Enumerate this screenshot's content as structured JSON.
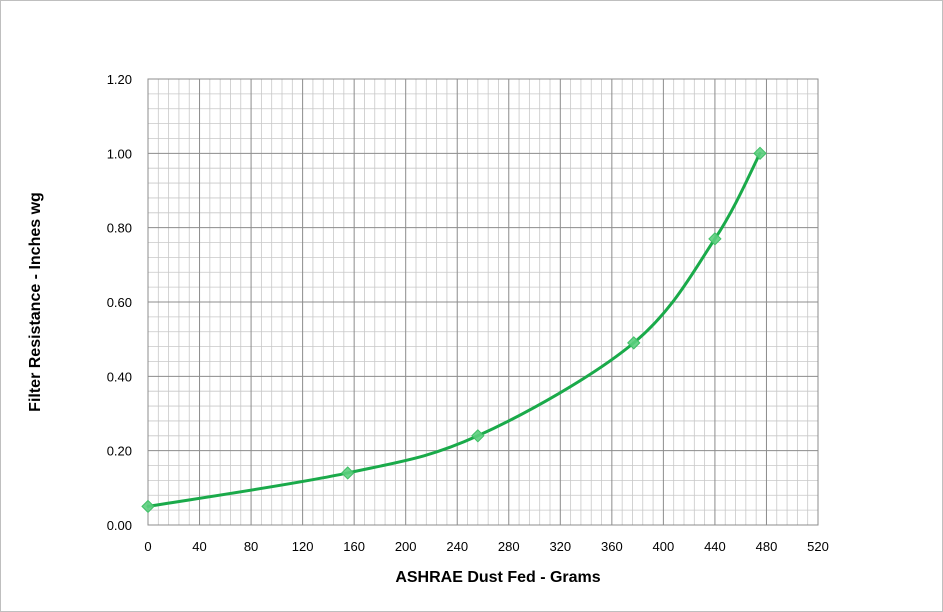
{
  "chart_data": {
    "type": "line",
    "title": "",
    "xlabel": "ASHRAE  Dust Fed - Grams",
    "ylabel": "Filter Resistance - Inches wg",
    "xlim": [
      0,
      520
    ],
    "ylim": [
      0,
      1.2
    ],
    "x_ticks": [
      "0",
      "40",
      "80",
      "120",
      "160",
      "200",
      "240",
      "280",
      "320",
      "360",
      "400",
      "440",
      "480",
      "520"
    ],
    "y_ticks": [
      "0.00",
      "0.20",
      "0.40",
      "0.60",
      "0.80",
      "1.00",
      "1.20"
    ],
    "grid": true,
    "legend": "none",
    "series": [
      {
        "color": "#1aaa4a",
        "marker": "diamond",
        "smooth": true,
        "x": [
          0,
          155,
          256,
          377,
          440,
          475
        ],
        "y": [
          0.05,
          0.14,
          0.24,
          0.49,
          0.77,
          1.0
        ]
      }
    ]
  }
}
